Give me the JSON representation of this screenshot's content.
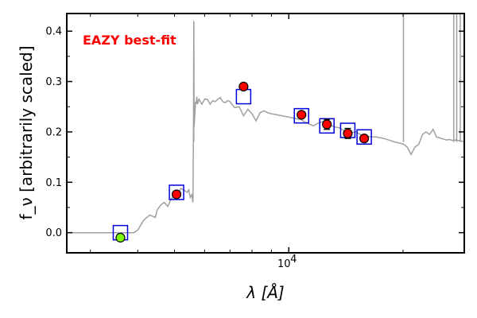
{
  "chart_data": {
    "type": "scatter",
    "title": "",
    "annotation": "EAZY best-fit",
    "xlabel": "λ [Å]",
    "ylabel": "f_ν [arbitrarily scaled]",
    "x_scale": "log",
    "xlim": [
      2600,
      29000
    ],
    "ylim": [
      -0.04,
      0.435
    ],
    "y_ticks": [
      0.0,
      0.1,
      0.2,
      0.3,
      0.4
    ],
    "y_tick_labels": [
      "0.0",
      "0.1",
      "0.2",
      "0.3",
      "0.4"
    ],
    "x_ticks": [
      10000
    ],
    "x_tick_labels": [
      "10^4"
    ],
    "grid": false,
    "colors": {
      "model": "#a0a0a0",
      "model_points": "#0000dd",
      "observed": "#ff0000",
      "nondetection": "#7cfc00",
      "annotation": "#ff0000"
    },
    "model_spectrum": {
      "x": [
        2600,
        3700,
        3900,
        4000,
        4150,
        4300,
        4450,
        4500,
        4600,
        4700,
        4800,
        4900,
        5000,
        5100,
        5200,
        5300,
        5400,
        5450,
        5500,
        5550,
        5590,
        5610,
        5620,
        5630,
        5680,
        5700,
        5720,
        5750,
        5800,
        5900,
        6000,
        6100,
        6200,
        6300,
        6400,
        6500,
        6600,
        6700,
        6800,
        6900,
        7000,
        7200,
        7400,
        7600,
        7800,
        8000,
        8200,
        8400,
        8600,
        8800,
        9000,
        9300,
        9600,
        9900,
        10200,
        10500,
        10800,
        11000,
        11300,
        11600,
        12000,
        12400,
        12800,
        13200,
        13600,
        14000,
        14500,
        15000,
        15500,
        16000,
        16500,
        17000,
        17500,
        18000,
        18500,
        19000,
        19500,
        20000,
        20500,
        21000,
        21500,
        22000,
        22500,
        23000,
        23500,
        24000,
        24500,
        25000,
        25500,
        26000,
        26500,
        27000,
        27500,
        28000,
        28500,
        29000
      ],
      "y": [
        0.0,
        0.0,
        0.0,
        0.005,
        0.025,
        0.035,
        0.03,
        0.045,
        0.055,
        0.06,
        0.052,
        0.068,
        0.072,
        0.078,
        0.088,
        0.084,
        0.08,
        0.085,
        0.07,
        0.075,
        0.06,
        0.22,
        0.42,
        0.21,
        0.26,
        0.255,
        0.27,
        0.255,
        0.265,
        0.255,
        0.265,
        0.265,
        0.255,
        0.262,
        0.26,
        0.265,
        0.268,
        0.26,
        0.258,
        0.262,
        0.26,
        0.248,
        0.25,
        0.232,
        0.245,
        0.236,
        0.222,
        0.238,
        0.242,
        0.238,
        0.236,
        0.234,
        0.232,
        0.23,
        0.228,
        0.226,
        0.224,
        0.22,
        0.216,
        0.212,
        0.218,
        0.222,
        0.214,
        0.21,
        0.208,
        0.202,
        0.198,
        0.2,
        0.194,
        0.192,
        0.19,
        0.19,
        0.188,
        0.186,
        0.183,
        0.18,
        0.178,
        0.176,
        0.17,
        0.155,
        0.17,
        0.175,
        0.195,
        0.2,
        0.195,
        0.205,
        0.19,
        0.188,
        0.186,
        0.184,
        0.185,
        0.183,
        0.184,
        0.183,
        0.182,
        0.18
      ]
    },
    "model_spikes": [
      {
        "x": 5620,
        "y": 0.42
      },
      {
        "x": 20050,
        "y": 0.435
      },
      {
        "x": 27200,
        "y": 0.435
      },
      {
        "x": 27700,
        "y": 0.435
      },
      {
        "x": 28300,
        "y": 0.435
      }
    ],
    "model_photometry": {
      "x": [
        3600,
        5060,
        7600,
        10800,
        12600,
        14300,
        15800
      ],
      "y": [
        0.0,
        0.08,
        0.27,
        0.232,
        0.212,
        0.203,
        0.19
      ]
    },
    "observed_photometry": {
      "x": [
        3600,
        5060,
        7600,
        10800,
        12600,
        14300,
        15800
      ],
      "y": [
        -0.01,
        0.076,
        0.29,
        0.234,
        0.215,
        0.197,
        0.187
      ],
      "yerr": [
        0.002,
        0.002,
        0.002,
        0.003,
        0.01,
        0.01,
        0.006
      ],
      "nondetection": [
        true,
        false,
        false,
        false,
        false,
        false,
        false
      ]
    }
  }
}
